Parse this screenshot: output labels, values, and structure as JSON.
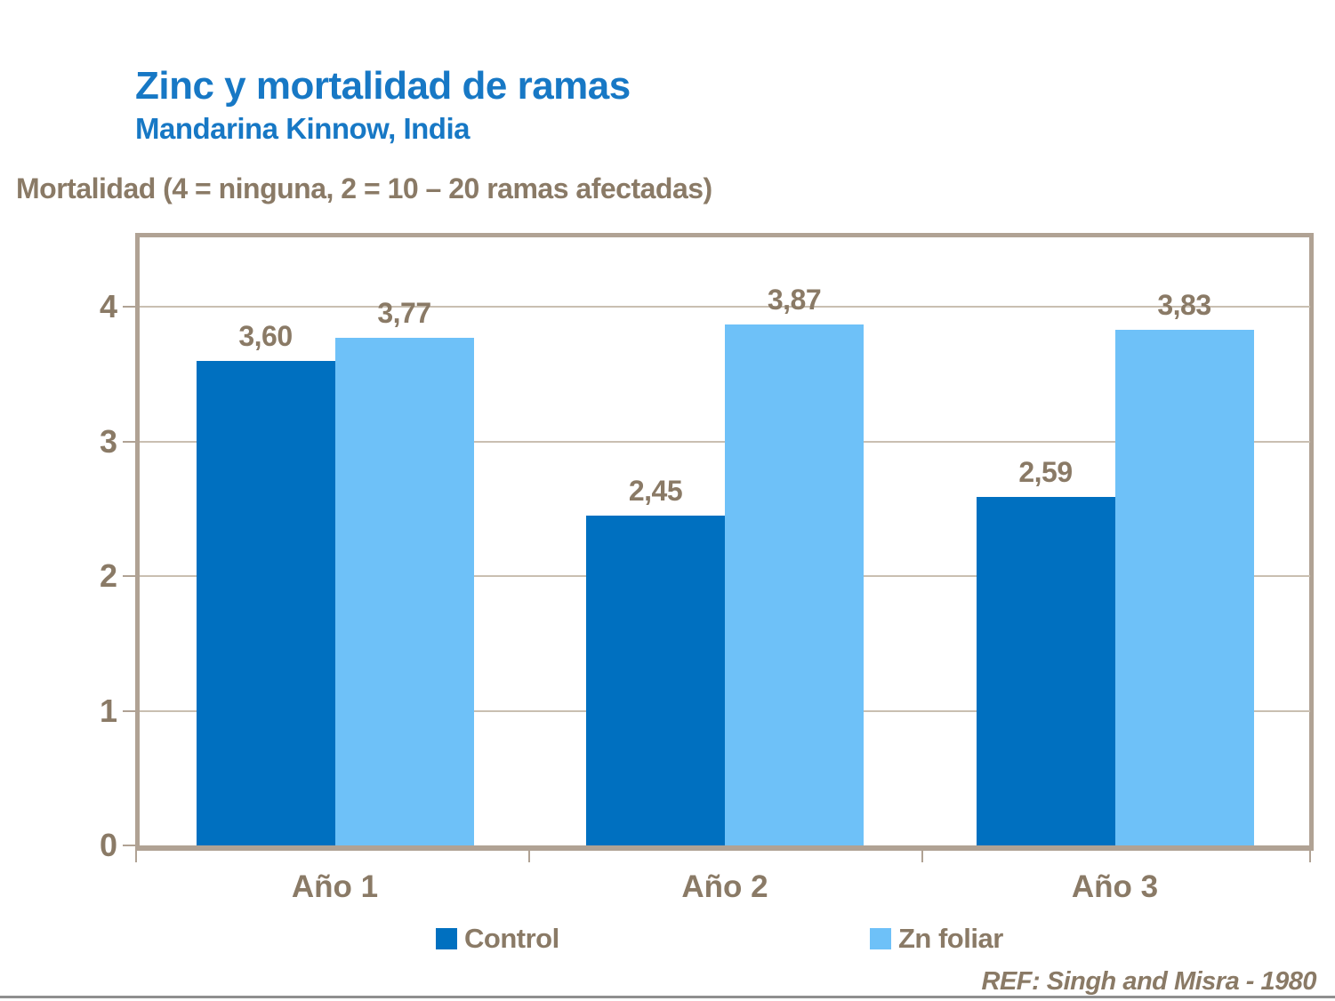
{
  "slide": {
    "title": "Zinc y mortalidad de ramas",
    "subtitle": "Mandarina Kinnow, India",
    "axis_heading": "Mortalidad (4 = ninguna, 2 = 10 – 20 ramas afectadas)",
    "reference": "REF: Singh and Misra - 1980"
  },
  "colors": {
    "title_blue": "#1778C5",
    "text_brown": "#8A7A66",
    "control_blue": "#0070C0",
    "zn_light_blue": "#6EC1F8",
    "frame_tan": "#B0A294",
    "gridline_tan": "#C9BFB1",
    "bottom_rule_gray": "#8F8F8F"
  },
  "chart_data": {
    "type": "bar",
    "title": "Zinc y mortalidad de ramas — Mandarina Kinnow, India",
    "ylabel": "Mortalidad (4 = ninguna, 2 = 10 – 20 ramas afectadas)",
    "xlabel": "",
    "categories": [
      "Año 1",
      "Año 2",
      "Año 3"
    ],
    "series": [
      {
        "name": "Control",
        "color": "#0070C0",
        "values": [
          3.6,
          2.45,
          2.59
        ],
        "labels": [
          "3,60",
          "2,45",
          "2,59"
        ]
      },
      {
        "name": "Zn foliar",
        "color": "#6EC1F8",
        "values": [
          3.77,
          3.87,
          3.83
        ],
        "labels": [
          "3,77",
          "3,87",
          "3,83"
        ]
      }
    ],
    "ylim": [
      0,
      4.55
    ],
    "yticks": [
      0,
      1,
      2,
      3,
      4
    ],
    "grid": true,
    "legend_position": "bottom"
  }
}
